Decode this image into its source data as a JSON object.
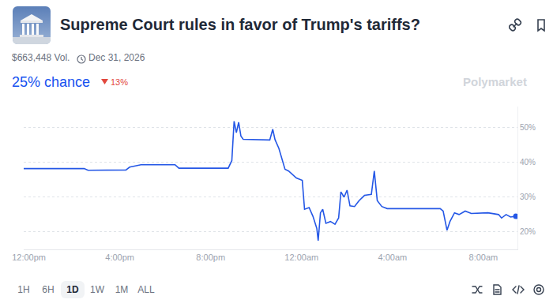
{
  "header": {
    "title": "Supreme Court rules in favor of Trump's tariffs?",
    "volume": "$663,448 Vol.",
    "end_date": "Dec 31, 2026",
    "probability": "25% chance",
    "change": "13%",
    "watermark": "Polymarket"
  },
  "chart_data": {
    "type": "line",
    "x": [
      11.77,
      14.43,
      14.6,
      16.27,
      16.43,
      16.93,
      18.43,
      18.6,
      20.77,
      20.93,
      21.03,
      21.13,
      21.23,
      21.33,
      21.43,
      22.6,
      22.73,
      22.83,
      23.0,
      23.17,
      23.27,
      23.43,
      23.77,
      24.03,
      24.13,
      24.33,
      24.5,
      24.67,
      24.73,
      24.83,
      24.93,
      25.07,
      25.27,
      25.47,
      25.63,
      25.73,
      25.87,
      26.0,
      26.13,
      26.33,
      26.53,
      26.77,
      27.07,
      27.2,
      27.33,
      27.53,
      27.77,
      30.1,
      30.23,
      30.4,
      30.53,
      30.73,
      30.93,
      31.2,
      31.47,
      32.2,
      32.67,
      32.8,
      33.0,
      33.2,
      33.43
    ],
    "values": [
      38.2,
      38.2,
      37.7,
      37.8,
      38.6,
      39.3,
      39.3,
      38.3,
      38.3,
      40.5,
      51.8,
      48.5,
      51.5,
      47.5,
      46.6,
      46.4,
      49.5,
      46.5,
      44.0,
      40.5,
      38.0,
      37.5,
      35.5,
      34.8,
      26.5,
      27.0,
      24.5,
      21.0,
      17.5,
      25.5,
      26.5,
      22.5,
      23.0,
      22.2,
      24.0,
      31.5,
      30.0,
      32.0,
      27.5,
      27.3,
      29.0,
      30.5,
      30.8,
      37.5,
      29.0,
      27.3,
      26.7,
      26.7,
      26.0,
      20.5,
      23.0,
      25.5,
      25.0,
      26.0,
      25.3,
      25.5,
      25.0,
      24.0,
      25.0,
      24.3,
      24.5
    ],
    "color": "#2457e6",
    "marker": "end",
    "xlim": [
      11.77,
      33.5
    ],
    "xticks": [
      {
        "value": 12,
        "label": "12:00pm"
      },
      {
        "value": 16,
        "label": "4:00pm"
      },
      {
        "value": 20,
        "label": "8:00pm"
      },
      {
        "value": 24,
        "label": "12:00am"
      },
      {
        "value": 28,
        "label": "4:00am"
      },
      {
        "value": 32,
        "label": "8:00am"
      }
    ],
    "ylim": [
      15,
      56
    ],
    "yticks": [
      {
        "value": 20,
        "label": "20%"
      },
      {
        "value": 30,
        "label": "30%"
      },
      {
        "value": 40,
        "label": "40%"
      },
      {
        "value": 50,
        "label": "50%"
      }
    ],
    "grid": "y"
  },
  "controls": {
    "ranges": [
      "1H",
      "6H",
      "1D",
      "1W",
      "1M",
      "ALL"
    ],
    "selected": "1D"
  }
}
